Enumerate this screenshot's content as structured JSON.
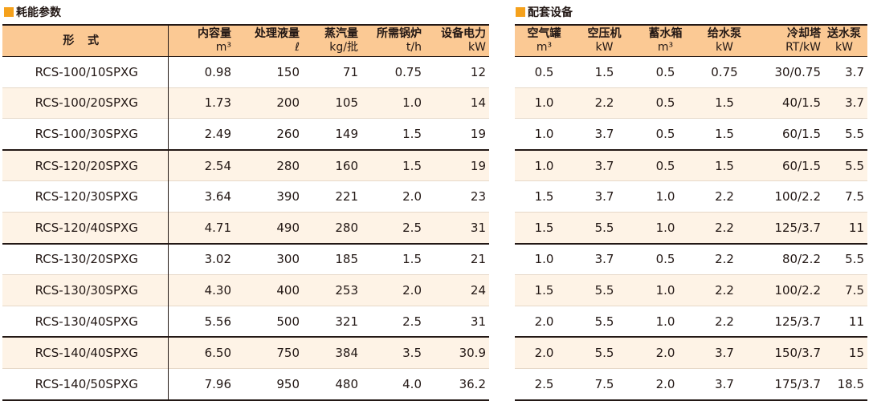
{
  "left": {
    "title": "耗能参数",
    "headers": [
      {
        "name": "形 式",
        "unit": ""
      },
      {
        "name": "内容量",
        "unit": "m³"
      },
      {
        "name": "处理液量",
        "unit": "ℓ"
      },
      {
        "name": "蒸汽量",
        "unit": "kg/批"
      },
      {
        "name": "所需锅炉",
        "unit": "t/h"
      },
      {
        "name": "设备电力",
        "unit": "kW"
      }
    ],
    "rows": [
      [
        "RCS-100/10SPXG",
        "0.98",
        "150",
        "71",
        "0.75",
        "12"
      ],
      [
        "RCS-100/20SPXG",
        "1.73",
        "200",
        "105",
        "1.0",
        "14"
      ],
      [
        "RCS-100/30SPXG",
        "2.49",
        "260",
        "149",
        "1.5",
        "19"
      ],
      [
        "RCS-120/20SPXG",
        "2.54",
        "280",
        "160",
        "1.5",
        "19"
      ],
      [
        "RCS-120/30SPXG",
        "3.64",
        "390",
        "221",
        "2.0",
        "23"
      ],
      [
        "RCS-120/40SPXG",
        "4.71",
        "490",
        "280",
        "2.5",
        "31"
      ],
      [
        "RCS-130/20SPXG",
        "3.02",
        "300",
        "185",
        "1.5",
        "21"
      ],
      [
        "RCS-130/30SPXG",
        "4.30",
        "400",
        "253",
        "2.0",
        "24"
      ],
      [
        "RCS-130/40SPXG",
        "5.56",
        "500",
        "321",
        "2.5",
        "31"
      ],
      [
        "RCS-140/40SPXG",
        "6.50",
        "750",
        "384",
        "3.5",
        "30.9"
      ],
      [
        "RCS-140/50SPXG",
        "7.96",
        "950",
        "480",
        "4.0",
        "36.2"
      ]
    ]
  },
  "right": {
    "title": "配套设备",
    "headers": [
      {
        "name": "空气罐",
        "unit": "m³"
      },
      {
        "name": "空压机",
        "unit": "kW"
      },
      {
        "name": "蓄水箱",
        "unit": "m³"
      },
      {
        "name": "给水泵",
        "unit": "kW"
      },
      {
        "name": "冷却塔",
        "unit": "RT/kW"
      },
      {
        "name": "送水泵",
        "unit": "kW"
      }
    ],
    "rows": [
      [
        "0.5",
        "1.5",
        "0.5",
        "0.75",
        "30/0.75",
        "3.7"
      ],
      [
        "1.0",
        "2.2",
        "0.5",
        "1.5",
        "40/1.5",
        "3.7"
      ],
      [
        "1.0",
        "3.7",
        "0.5",
        "1.5",
        "60/1.5",
        "5.5"
      ],
      [
        "1.0",
        "3.7",
        "0.5",
        "1.5",
        "60/1.5",
        "5.5"
      ],
      [
        "1.5",
        "3.7",
        "1.0",
        "2.2",
        "100/2.2",
        "7.5"
      ],
      [
        "1.5",
        "5.5",
        "1.0",
        "2.2",
        "125/3.7",
        "11"
      ],
      [
        "1.0",
        "3.7",
        "0.5",
        "2.2",
        "80/2.2",
        "5.5"
      ],
      [
        "1.5",
        "5.5",
        "1.0",
        "2.2",
        "100/2.2",
        "7.5"
      ],
      [
        "2.0",
        "5.5",
        "1.0",
        "2.2",
        "125/3.7",
        "11"
      ],
      [
        "2.0",
        "5.5",
        "2.0",
        "3.7",
        "150/3.7",
        "15"
      ],
      [
        "2.5",
        "7.5",
        "2.0",
        "3.7",
        "175/3.7",
        "18.5"
      ]
    ]
  },
  "colors": {
    "accent": "#f5a11c",
    "header_bg": "#fbc994",
    "stripe": "#fef3e6",
    "text": "#231815"
  }
}
